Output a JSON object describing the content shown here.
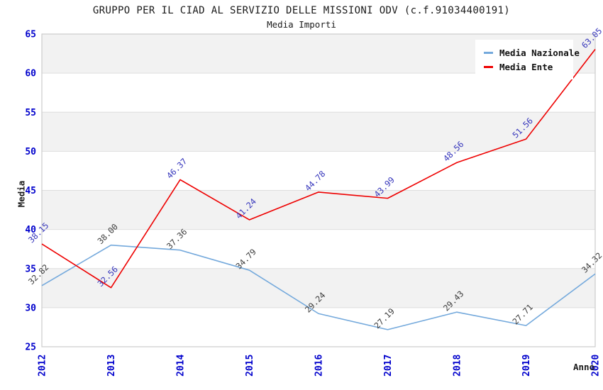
{
  "chart": {
    "title": "GRUPPO PER IL CIAD AL SERVIZIO DELLE MISSIONI ODV (c.f.91034400191)",
    "subtitle": "Media Importi",
    "ylabel": "Media",
    "xlabel": "Anno"
  },
  "chart_data": {
    "type": "line",
    "title": "GRUPPO PER IL CIAD AL SERVIZIO DELLE MISSIONI ODV (c.f.91034400191)",
    "subtitle": "Media Importi",
    "xlabel": "Anno",
    "ylabel": "Media",
    "categories": [
      "2012",
      "2013",
      "2014",
      "2015",
      "2016",
      "2017",
      "2018",
      "2019",
      "2020"
    ],
    "series": [
      {
        "name": "Media Nazionale",
        "color": "#74A9DC",
        "label_color": "#3C3C3C",
        "values": [
          32.82,
          38.0,
          37.36,
          34.79,
          29.24,
          27.19,
          29.43,
          27.71,
          34.32
        ]
      },
      {
        "name": "Media Ente",
        "color": "#EE0000",
        "label_color": "#3434BB",
        "values": [
          38.15,
          32.56,
          46.37,
          41.24,
          44.78,
          43.99,
          48.56,
          51.56,
          63.05
        ]
      }
    ],
    "ylim": [
      25,
      65
    ],
    "y_ticks": [
      25,
      30,
      35,
      40,
      45,
      50,
      55,
      60,
      65
    ],
    "grid": true,
    "legend_position": "top-right",
    "band_fill": "#F2F2F2",
    "grid_color": "#DDDDDD",
    "border_color": "#CCCCCC",
    "tick_color": "#0000CC"
  }
}
